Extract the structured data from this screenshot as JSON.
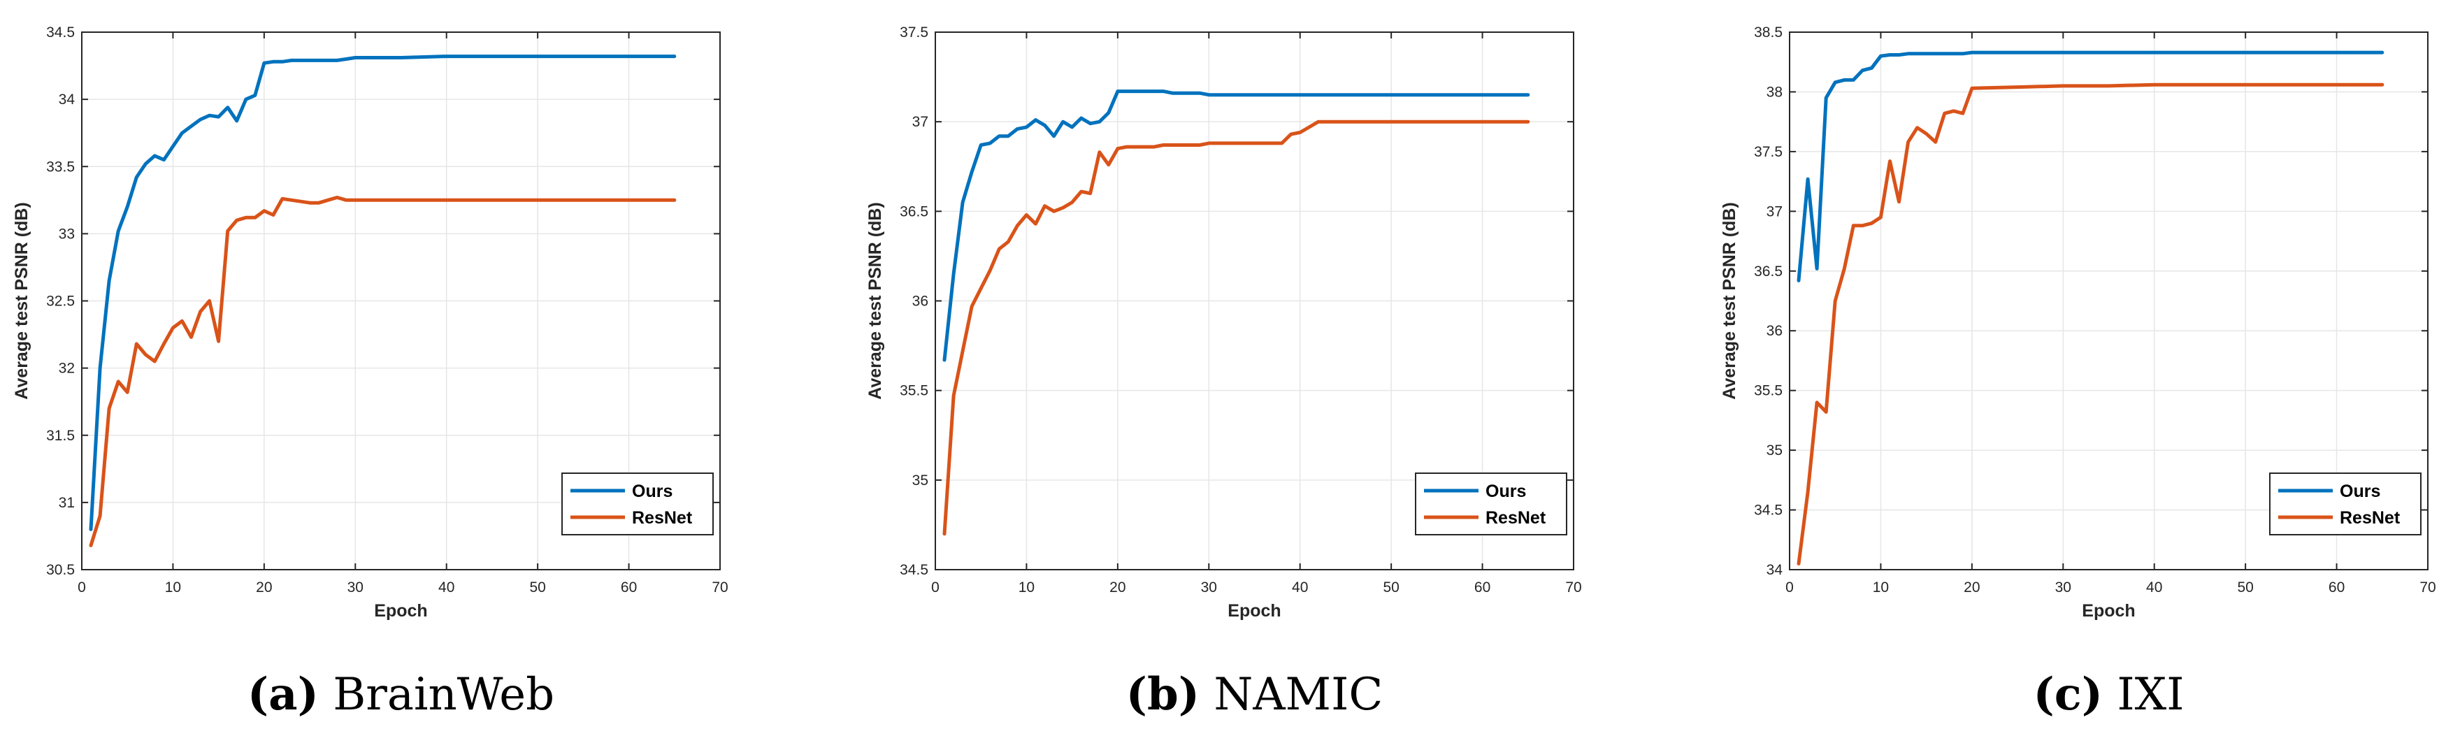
{
  "colors": {
    "ours": "#0072BD",
    "resnet": "#D95319",
    "grid": "#e6e6e6",
    "axis": "#262626"
  },
  "chart_data": [
    {
      "type": "line",
      "caption_letter": "(a)",
      "caption_text": "BrainWeb",
      "xlabel": "Epoch",
      "ylabel": "Average test PSNR (dB)",
      "xlim": [
        0,
        70
      ],
      "ylim": [
        30.5,
        34.5
      ],
      "xticks": [
        0,
        10,
        20,
        30,
        40,
        50,
        60,
        70
      ],
      "yticks": [
        30.5,
        31,
        31.5,
        32,
        32.5,
        33,
        33.5,
        34,
        34.5
      ],
      "xtick_labels": [
        "0",
        "10",
        "20",
        "30",
        "40",
        "50",
        "60",
        "70"
      ],
      "ytick_labels": [
        "30.5",
        "31",
        "31.5",
        "32",
        "32.5",
        "33",
        "33.5",
        "34",
        "34.5"
      ],
      "grid": true,
      "legend_position": "lower-right",
      "series": [
        {
          "name": "Ours",
          "key": "ours",
          "x": [
            1,
            2,
            3,
            4,
            5,
            6,
            7,
            8,
            9,
            10,
            11,
            12,
            13,
            14,
            15,
            16,
            17,
            18,
            19,
            20,
            21,
            22,
            23,
            24,
            25,
            26,
            27,
            28,
            29,
            30,
            35,
            40,
            45,
            50,
            55,
            60,
            65
          ],
          "y": [
            30.8,
            32,
            32.65,
            33.02,
            33.2,
            33.42,
            33.52,
            33.58,
            33.55,
            33.65,
            33.75,
            33.8,
            33.85,
            33.88,
            33.87,
            33.94,
            33.84,
            34,
            34.03,
            34.27,
            34.28,
            34.28,
            34.29,
            34.29,
            34.29,
            34.29,
            34.29,
            34.29,
            34.3,
            34.31,
            34.31,
            34.32,
            34.32,
            34.32,
            34.32,
            34.32,
            34.32
          ]
        },
        {
          "name": "ResNet",
          "key": "resnet",
          "x": [
            1,
            2,
            3,
            4,
            5,
            6,
            7,
            8,
            9,
            10,
            11,
            12,
            13,
            14,
            15,
            16,
            17,
            18,
            19,
            20,
            21,
            22,
            23,
            24,
            25,
            26,
            27,
            28,
            29,
            30,
            35,
            40,
            45,
            50,
            55,
            60,
            65
          ],
          "y": [
            30.68,
            30.9,
            31.7,
            31.9,
            31.82,
            32.18,
            32.1,
            32.05,
            32.18,
            32.3,
            32.35,
            32.23,
            32.42,
            32.5,
            32.2,
            33.02,
            33.1,
            33.12,
            33.12,
            33.17,
            33.14,
            33.26,
            33.25,
            33.24,
            33.23,
            33.23,
            33.25,
            33.27,
            33.25,
            33.25,
            33.25,
            33.25,
            33.25,
            33.25,
            33.25,
            33.25,
            33.25
          ]
        }
      ]
    },
    {
      "type": "line",
      "caption_letter": "(b)",
      "caption_text": "NAMIC",
      "xlabel": "Epoch",
      "ylabel": "Average test PSNR (dB)",
      "xlim": [
        0,
        70
      ],
      "ylim": [
        34.5,
        37.5
      ],
      "xticks": [
        0,
        10,
        20,
        30,
        40,
        50,
        60,
        70
      ],
      "yticks": [
        34.5,
        35,
        35.5,
        36,
        36.5,
        37,
        37.5
      ],
      "xtick_labels": [
        "0",
        "10",
        "20",
        "30",
        "40",
        "50",
        "60",
        "70"
      ],
      "ytick_labels": [
        "34.5",
        "35",
        "35.5",
        "36",
        "36.5",
        "37",
        "37.5"
      ],
      "grid": true,
      "legend_position": "lower-right",
      "series": [
        {
          "name": "Ours",
          "key": "ours",
          "x": [
            1,
            2,
            3,
            4,
            5,
            6,
            7,
            8,
            9,
            10,
            11,
            12,
            13,
            14,
            15,
            16,
            17,
            18,
            19,
            20,
            21,
            22,
            23,
            24,
            25,
            26,
            27,
            28,
            29,
            30,
            35,
            40,
            45,
            50,
            55,
            60,
            65
          ],
          "y": [
            35.67,
            36.15,
            36.55,
            36.72,
            36.87,
            36.88,
            36.92,
            36.92,
            36.96,
            36.97,
            37.01,
            36.98,
            36.92,
            37,
            36.97,
            37.02,
            36.99,
            37,
            37.05,
            37.17,
            37.17,
            37.17,
            37.17,
            37.17,
            37.17,
            37.16,
            37.16,
            37.16,
            37.16,
            37.15,
            37.15,
            37.15,
            37.15,
            37.15,
            37.15,
            37.15,
            37.15
          ]
        },
        {
          "name": "ResNet",
          "key": "resnet",
          "x": [
            1,
            2,
            3,
            4,
            5,
            6,
            7,
            8,
            9,
            10,
            11,
            12,
            13,
            14,
            15,
            16,
            17,
            18,
            19,
            20,
            21,
            22,
            23,
            24,
            25,
            26,
            27,
            28,
            29,
            30,
            35,
            38,
            39,
            40,
            41,
            42,
            45,
            50,
            55,
            60,
            65
          ],
          "y": [
            34.7,
            35.47,
            35.72,
            35.97,
            36.07,
            36.17,
            36.29,
            36.33,
            36.42,
            36.48,
            36.43,
            36.53,
            36.5,
            36.52,
            36.55,
            36.61,
            36.6,
            36.83,
            36.76,
            36.85,
            36.86,
            36.86,
            36.86,
            36.86,
            36.87,
            36.87,
            36.87,
            36.87,
            36.87,
            36.88,
            36.88,
            36.88,
            36.93,
            36.94,
            36.97,
            37,
            37,
            37,
            37,
            37,
            37
          ]
        }
      ]
    },
    {
      "type": "line",
      "caption_letter": "(c)",
      "caption_text": "IXI",
      "xlabel": "Epoch",
      "ylabel": "Average test PSNR (dB)",
      "xlim": [
        0,
        70
      ],
      "ylim": [
        34,
        38.5
      ],
      "xticks": [
        0,
        10,
        20,
        30,
        40,
        50,
        60,
        70
      ],
      "yticks": [
        34,
        34.5,
        35,
        35.5,
        36,
        36.5,
        37,
        37.5,
        38,
        38.5
      ],
      "xtick_labels": [
        "0",
        "10",
        "20",
        "30",
        "40",
        "50",
        "60",
        "70"
      ],
      "ytick_labels": [
        "34",
        "34.5",
        "35",
        "35.5",
        "36",
        "36.5",
        "37",
        "37.5",
        "38",
        "38.5"
      ],
      "grid": true,
      "legend_position": "lower-right",
      "series": [
        {
          "name": "Ours",
          "key": "ours",
          "x": [
            1,
            2,
            3,
            4,
            5,
            6,
            7,
            8,
            9,
            10,
            11,
            12,
            13,
            14,
            15,
            16,
            17,
            18,
            19,
            20,
            25,
            30,
            35,
            40,
            45,
            50,
            55,
            60,
            65
          ],
          "y": [
            36.42,
            37.27,
            36.52,
            37.95,
            38.08,
            38.1,
            38.1,
            38.18,
            38.2,
            38.3,
            38.31,
            38.31,
            38.32,
            38.32,
            38.32,
            38.32,
            38.32,
            38.32,
            38.32,
            38.33,
            38.33,
            38.33,
            38.33,
            38.33,
            38.33,
            38.33,
            38.33,
            38.33,
            38.33
          ]
        },
        {
          "name": "ResNet",
          "key": "resnet",
          "x": [
            1,
            2,
            3,
            4,
            5,
            6,
            7,
            8,
            9,
            10,
            11,
            12,
            13,
            14,
            15,
            16,
            17,
            18,
            19,
            20,
            25,
            30,
            35,
            40,
            45,
            50,
            55,
            60,
            65
          ],
          "y": [
            34.05,
            34.65,
            35.4,
            35.32,
            36.25,
            36.52,
            36.88,
            36.88,
            36.9,
            36.95,
            37.42,
            37.08,
            37.58,
            37.7,
            37.65,
            37.58,
            37.82,
            37.84,
            37.82,
            38.03,
            38.04,
            38.05,
            38.05,
            38.06,
            38.06,
            38.06,
            38.06,
            38.06,
            38.06
          ]
        }
      ]
    }
  ]
}
